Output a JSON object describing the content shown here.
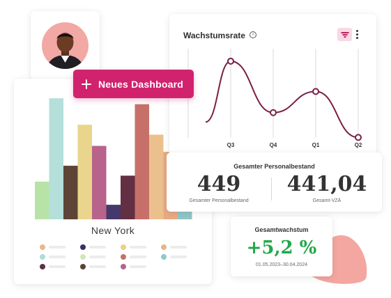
{
  "new_dashboard": {
    "label": "Neues Dashboard"
  },
  "bar_chart": {
    "city": "New York",
    "colors": [
      "#b8e3a7",
      "#b4dfdb",
      "#5d4437",
      "#e9d68c",
      "#b8638c",
      "#46386c",
      "#622f43",
      "#c7706a",
      "#ecc08d",
      "#e9aa84",
      "#8fc7c6"
    ],
    "values": [
      57,
      183,
      81,
      143,
      111,
      22,
      66,
      174,
      128,
      102,
      12
    ],
    "legend_colors": [
      "#e7b98b",
      "#afdcd8",
      "#5d3241",
      "#3a2f66",
      "#cfe7b8",
      "#5b4335",
      "#e7d18a",
      "#c4716b",
      "#b0668e",
      "#eab48a",
      "#8ecbc9"
    ]
  },
  "growth": {
    "title": "Wachstumsrate",
    "line_color": "#7a1f46",
    "chart_data": {
      "type": "line",
      "categories": [
        "",
        "Q3",
        "Q4",
        "Q1",
        "Q2"
      ],
      "values": [
        0.4,
        0.88,
        0.32,
        0.55,
        0.05
      ],
      "title": "Wachstumsrate",
      "ylim": [
        0,
        1
      ]
    }
  },
  "headcount": {
    "title": "Gesamter Personalbestand",
    "left_value": "449",
    "left_label": "Gesamter Personalbestand",
    "right_value": "441,04",
    "right_label": "Gesamt-VZÄ"
  },
  "growth_total": {
    "title": "Gesamtwachstum",
    "value": "+5,2 %",
    "value_color": "#22a84a",
    "date_range": "01.05.2023–30.04.2024"
  },
  "icons": {
    "info": "info-icon",
    "filter": "filter-icon",
    "more": "more-vertical-icon",
    "plus": "plus-icon"
  }
}
